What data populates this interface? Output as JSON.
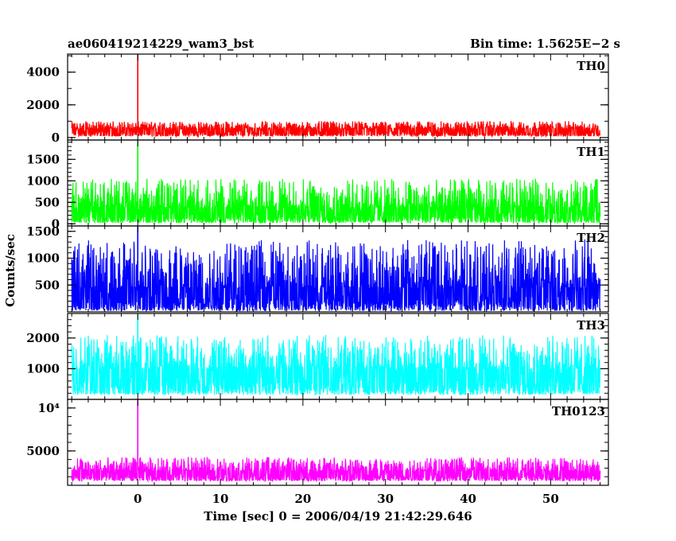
{
  "chart_data": {
    "type": "line",
    "title_left": "ae060419214229_wam3_bst",
    "title_right": "Bin time: 1.5625E−2 s",
    "xlabel": "Time [sec] 0 = 2006/04/19 21:42:29.646",
    "ylabel": "Counts/sec",
    "x_range": [
      -8,
      56
    ],
    "xlim": [
      -8.5,
      57
    ],
    "x_ticks": [
      0,
      10,
      20,
      30,
      40,
      50
    ],
    "x_tick_labels": [
      "0",
      "10",
      "20",
      "30",
      "40",
      "50"
    ],
    "spike_x": 0,
    "panels": [
      {
        "name": "TH0",
        "color": "#ff0000",
        "ylim": [
          -150,
          5100
        ],
        "yticks": [
          0,
          2000,
          4000
        ],
        "ytick_labels": [
          "0",
          "2000",
          "4000"
        ],
        "baseline": 550,
        "low": 80,
        "high": 1000,
        "spike_peak": 5100
      },
      {
        "name": "TH1",
        "color": "#00ff00",
        "ylim": [
          -50,
          1950
        ],
        "yticks": [
          0,
          500,
          1000,
          1500
        ],
        "ytick_labels": [
          "0",
          "500",
          "1000",
          "1500"
        ],
        "baseline": 380,
        "low": 20,
        "high": 1050,
        "spike_peak": 1950
      },
      {
        "name": "TH2",
        "color": "#0000ff",
        "ylim": [
          0,
          1600
        ],
        "yticks": [
          500,
          1000,
          1500
        ],
        "ytick_labels": [
          "500",
          "1000",
          "1500"
        ],
        "baseline": 450,
        "low": 20,
        "high": 1350,
        "spike_peak": 1600
      },
      {
        "name": "TH3",
        "color": "#00ffff",
        "ylim": [
          0,
          2800
        ],
        "yticks": [
          1000,
          2000
        ],
        "ytick_labels": [
          "1000",
          "2000"
        ],
        "baseline": 1000,
        "low": 150,
        "high": 2100,
        "spike_peak": 2800
      },
      {
        "name": "TH0123",
        "color": "#ff00ff",
        "ylim": [
          1000,
          11000
        ],
        "yticks": [
          5000,
          10000
        ],
        "ytick_labels": [
          "5000",
          "10⁴"
        ],
        "baseline": 2700,
        "low": 1500,
        "high": 4300,
        "spike_peak": 11000
      }
    ]
  }
}
